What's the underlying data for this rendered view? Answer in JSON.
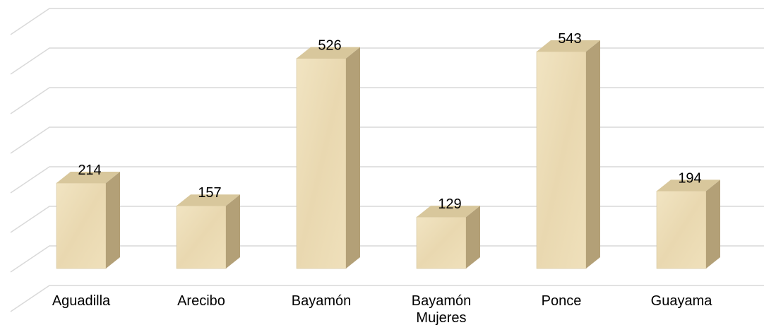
{
  "chart_data": {
    "type": "bar",
    "categories": [
      "Aguadilla",
      "Arecibo",
      "Bayamón",
      "Bayamón Mujeres",
      "Ponce",
      "Guayama"
    ],
    "values": [
      214,
      157,
      526,
      129,
      543,
      194
    ],
    "color": "#ecdcb6",
    "ylim": [
      0,
      700
    ],
    "yticks": [
      0,
      100,
      200,
      300,
      400,
      500,
      600,
      700
    ],
    "grid": true
  }
}
